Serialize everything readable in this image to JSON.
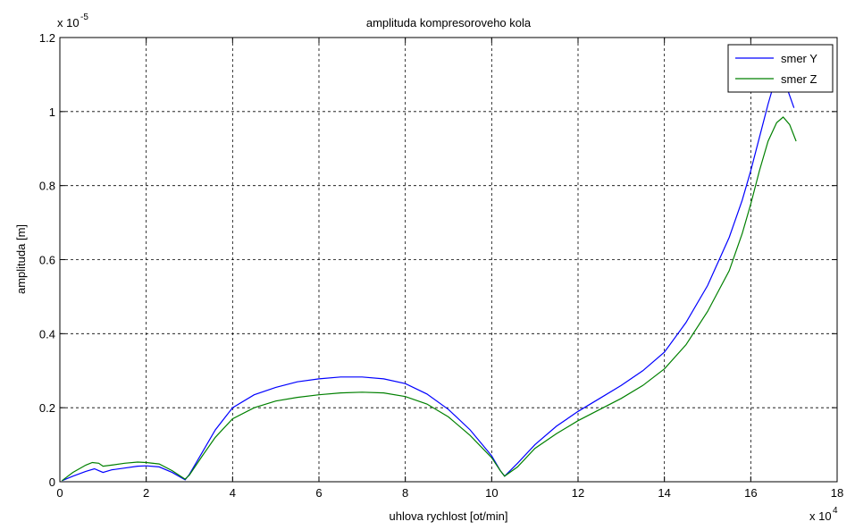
{
  "chart_data": {
    "type": "line",
    "title": "amplituda kompresoroveho kola",
    "xlabel": "uhlova rychlost [ot/min]",
    "ylabel": "amplituda [m]",
    "x_multiplier_label": "x 10",
    "x_multiplier_exp": "4",
    "y_multiplier_label": "x 10",
    "y_multiplier_exp": "-5",
    "xlim": [
      0,
      18
    ],
    "ylim": [
      0,
      1.2
    ],
    "xticks": [
      0,
      2,
      4,
      6,
      8,
      10,
      12,
      14,
      16,
      18
    ],
    "xtick_labels": [
      "0",
      "2",
      "4",
      "6",
      "8",
      "10",
      "12",
      "14",
      "16",
      "18"
    ],
    "yticks": [
      0,
      0.2,
      0.4,
      0.6,
      0.8,
      1.0,
      1.2
    ],
    "ytick_labels": [
      "0",
      "0.2",
      "0.4",
      "0.6",
      "0.8",
      "1",
      "1.2"
    ],
    "grid": true,
    "legend_position": "top-right",
    "series": [
      {
        "name": "smer Y",
        "color": "#0000ff",
        "x": [
          0.05,
          0.3,
          0.6,
          0.8,
          0.9,
          1.0,
          1.2,
          1.5,
          1.8,
          2.0,
          2.3,
          2.6,
          2.9,
          3.0,
          3.3,
          3.6,
          4.0,
          4.5,
          5.0,
          5.5,
          6.0,
          6.5,
          7.0,
          7.5,
          8.0,
          8.5,
          9.0,
          9.5,
          10.0,
          10.2,
          10.3,
          10.6,
          11.0,
          11.5,
          12.0,
          12.5,
          13.0,
          13.5,
          14.0,
          14.5,
          15.0,
          15.5,
          15.8,
          16.0,
          16.2,
          16.4,
          16.55,
          16.7,
          16.85,
          17.0
        ],
        "y": [
          0.003,
          0.015,
          0.028,
          0.035,
          0.03,
          0.025,
          0.032,
          0.037,
          0.042,
          0.043,
          0.04,
          0.025,
          0.005,
          0.02,
          0.08,
          0.14,
          0.2,
          0.235,
          0.255,
          0.27,
          0.278,
          0.283,
          0.283,
          0.278,
          0.265,
          0.237,
          0.195,
          0.14,
          0.07,
          0.03,
          0.015,
          0.05,
          0.1,
          0.15,
          0.19,
          0.225,
          0.26,
          0.3,
          0.35,
          0.43,
          0.53,
          0.66,
          0.76,
          0.84,
          0.93,
          1.02,
          1.08,
          1.1,
          1.06,
          1.01
        ]
      },
      {
        "name": "smer Z",
        "color": "#008000",
        "x": [
          0.05,
          0.3,
          0.6,
          0.75,
          0.9,
          1.0,
          1.2,
          1.5,
          1.8,
          2.0,
          2.3,
          2.6,
          2.9,
          3.0,
          3.3,
          3.6,
          4.0,
          4.5,
          5.0,
          5.5,
          6.0,
          6.5,
          7.0,
          7.5,
          8.0,
          8.5,
          9.0,
          9.5,
          10.0,
          10.2,
          10.3,
          10.6,
          11.0,
          11.5,
          12.0,
          12.5,
          13.0,
          13.5,
          14.0,
          14.5,
          15.0,
          15.5,
          15.8,
          16.0,
          16.2,
          16.4,
          16.6,
          16.75,
          16.9,
          17.05
        ],
        "y": [
          0.003,
          0.025,
          0.045,
          0.052,
          0.05,
          0.042,
          0.045,
          0.05,
          0.053,
          0.052,
          0.048,
          0.03,
          0.007,
          0.018,
          0.07,
          0.12,
          0.17,
          0.2,
          0.218,
          0.228,
          0.235,
          0.24,
          0.242,
          0.24,
          0.23,
          0.21,
          0.175,
          0.125,
          0.065,
          0.03,
          0.015,
          0.04,
          0.09,
          0.13,
          0.165,
          0.195,
          0.225,
          0.26,
          0.305,
          0.37,
          0.46,
          0.57,
          0.67,
          0.75,
          0.84,
          0.92,
          0.97,
          0.985,
          0.965,
          0.92
        ]
      }
    ]
  }
}
